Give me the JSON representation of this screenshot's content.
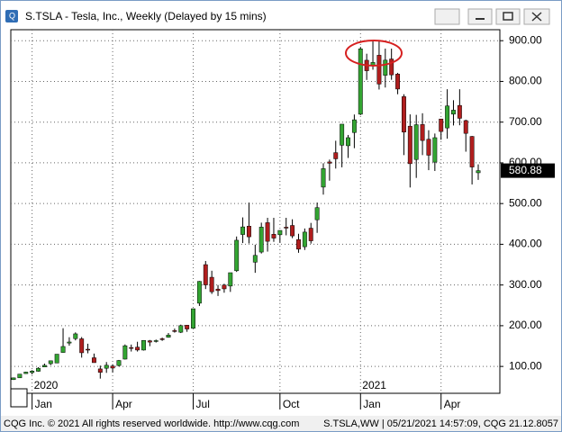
{
  "window": {
    "title": "S.TSLA - Tesla, Inc., Weekly (Delayed by 15 mins)"
  },
  "footer": {
    "left": "CQG Inc. © 2021 All rights reserved worldwide. http://www.cqg.com",
    "right": "S.TSLA,WW | 05/21/2021 14:57:09, CQG 21.12.8057"
  },
  "chart_data": {
    "type": "candlestick",
    "up_color": "#33a532",
    "down_color": "#b01e1e",
    "grid": true,
    "categories": [
      null,
      null,
      null,
      "Jan",
      null,
      null,
      null,
      null,
      null,
      null,
      null,
      null,
      null,
      null,
      null,
      null,
      "Apr",
      null,
      null,
      null,
      null,
      null,
      null,
      null,
      null,
      null,
      null,
      null,
      null,
      "Jul",
      null,
      null,
      null,
      null,
      null,
      null,
      null,
      null,
      null,
      null,
      null,
      null,
      null,
      "Oct",
      null,
      null,
      null,
      null,
      null,
      null,
      null,
      null,
      null,
      null,
      null,
      null,
      "Jan",
      null,
      null,
      null,
      null,
      null,
      null,
      null,
      null,
      null,
      null,
      null,
      null,
      "Apr",
      null,
      null,
      null,
      null,
      null,
      null
    ],
    "years": [
      null,
      null,
      null,
      "2020",
      null,
      null,
      null,
      null,
      null,
      null,
      null,
      null,
      null,
      null,
      null,
      null,
      null,
      null,
      null,
      null,
      null,
      null,
      null,
      null,
      null,
      null,
      null,
      null,
      null,
      null,
      null,
      null,
      null,
      null,
      null,
      null,
      null,
      null,
      null,
      null,
      null,
      null,
      null,
      null,
      null,
      null,
      null,
      null,
      null,
      null,
      null,
      null,
      null,
      null,
      null,
      null,
      "2021",
      null,
      null,
      null,
      null,
      null,
      null,
      null,
      null,
      null,
      null,
      null,
      null,
      null,
      null,
      null,
      null,
      null,
      null,
      null
    ],
    "open": [
      67.6,
      72.0,
      82.4,
      84.9,
      88.1,
      98.7,
      106.8,
      108.4,
      134.3,
      157.4,
      168.3,
      167.8,
      142.3,
      121.3,
      93.9,
      95.5,
      101.0,
      102.2,
      118.0,
      146.4,
      147.3,
      140.2,
      163.0,
      163.0,
      168.0,
      171.6,
      188.0,
      184.0,
      201.3,
      193.8,
      255.3,
      350.0,
      319.0,
      290.0,
      299.9,
      297.4,
      335.0,
      424.0,
      444.6,
      356.0,
      380.9,
      453.1,
      424.6,
      423.4,
      442.0,
      446.2,
      411.6,
      394.0,
      439.5,
      460.2,
      540.4,
      602.2,
      625.0,
      643.3,
      642.0,
      674.5,
      719.5,
      852.0,
      837.8,
      864.3,
      815.0,
      855.0,
      818.0,
      762.6,
      690.1,
      608.2,
      694.1,
      658.0,
      601.8,
      707.7,
      685.7,
      719.6,
      741.0,
      703.8,
      664.9,
      575.6
    ],
    "high": [
      72.6,
      81.2,
      87.1,
      90.8,
      98.0,
      107.0,
      114.4,
      130.2,
      193.8,
      171.7,
      183.6,
      172.2,
      155.8,
      131.6,
      102.0,
      110.8,
      105.4,
      115.9,
      154.0,
      153.7,
      160.6,
      164.5,
      165.0,
      166.0,
      170.8,
      182.2,
      193.0,
      202.6,
      202.0,
      242.0,
      309.8,
      359.0,
      335.0,
      300.0,
      303.0,
      330.2,
      419.1,
      466.0,
      502.5,
      398.9,
      453.1,
      465.0,
      465.0,
      434.5,
      465.0,
      461.4,
      425.8,
      438.8,
      452.5,
      502.5,
      599.0,
      608.0,
      654.3,
      695.0,
      668.5,
      718.7,
      884.5,
      868.0,
      900.4,
      900.4,
      880.5,
      880.5,
      821.0,
      768.5,
      719.0,
      717.9,
      721.8,
      680.1,
      672.0,
      708.2,
      780.8,
      753.8,
      780.8,
      706.0,
      666.0,
      596.3
    ],
    "low": [
      67.0,
      71.8,
      82.0,
      80.4,
      87.1,
      98.2,
      103.2,
      108.3,
      134.0,
      150.9,
      164.0,
      121.6,
      132.2,
      109.1,
      70.1,
      84.2,
      85.1,
      100.0,
      117.0,
      136.6,
      136.6,
      139.0,
      149.7,
      158.7,
      162.8,
      170.5,
      183.0,
      182.0,
      185.0,
      193.0,
      248.6,
      290.0,
      278.0,
      273.0,
      281.0,
      283.0,
      332.1,
      403.0,
      402.0,
      329.9,
      377.3,
      382.0,
      406.0,
      404.0,
      422.0,
      415.0,
      379.1,
      386.0,
      401.7,
      428.0,
      522.0,
      556.2,
      586.0,
      589.0,
      612.0,
      636.0,
      717.2,
      803.6,
      828.7,
      780.1,
      785.0,
      804.0,
      768.5,
      619.0,
      539.5,
      563.0,
      619.0,
      582.0,
      580.0,
      656.5,
      659.4,
      691.8,
      692.3,
      627.4,
      546.9,
      558.1
    ],
    "close": [
      71.9,
      81.1,
      86.1,
      88.6,
      95.6,
      102.7,
      113.9,
      130.1,
      149.0,
      160.0,
      180.0,
      133.6,
      140.7,
      109.3,
      85.5,
      102.9,
      96.0,
      114.6,
      150.8,
      145.0,
      140.3,
      163.9,
      159.8,
      163.4,
      167.0,
      177.1,
      187.1,
      200.2,
      191.9,
      241.7,
      308.9,
      300.2,
      283.4,
      286.2,
      290.5,
      330.2,
      409.9,
      442.7,
      418.3,
      372.7,
      442.2,
      407.3,
      415.1,
      434.0,
      439.7,
      420.6,
      388.0,
      429.9,
      408.5,
      490.0,
      585.8,
      599.0,
      609.9,
      695.0,
      661.8,
      705.7,
      880.0,
      826.2,
      846.6,
      793.5,
      852.2,
      816.1,
      781.3,
      675.5,
      597.9,
      693.7,
      654.9,
      618.7,
      661.8,
      677.0,
      739.8,
      729.4,
      709.4,
      672.4,
      589.7,
      580.88
    ],
    "ylim": [
      34,
      927
    ],
    "yticks": [
      {
        "value": 100,
        "label": "100.00"
      },
      {
        "value": 200,
        "label": "200.00"
      },
      {
        "value": 300,
        "label": "300.00"
      },
      {
        "value": 400,
        "label": "400.00"
      },
      {
        "value": 500,
        "label": "500.00"
      },
      {
        "value": 600,
        "label": "600.00"
      },
      {
        "value": 700,
        "label": "700.00"
      },
      {
        "value": 800,
        "label": "800.00"
      },
      {
        "value": 900,
        "label": "900.00"
      }
    ]
  }
}
